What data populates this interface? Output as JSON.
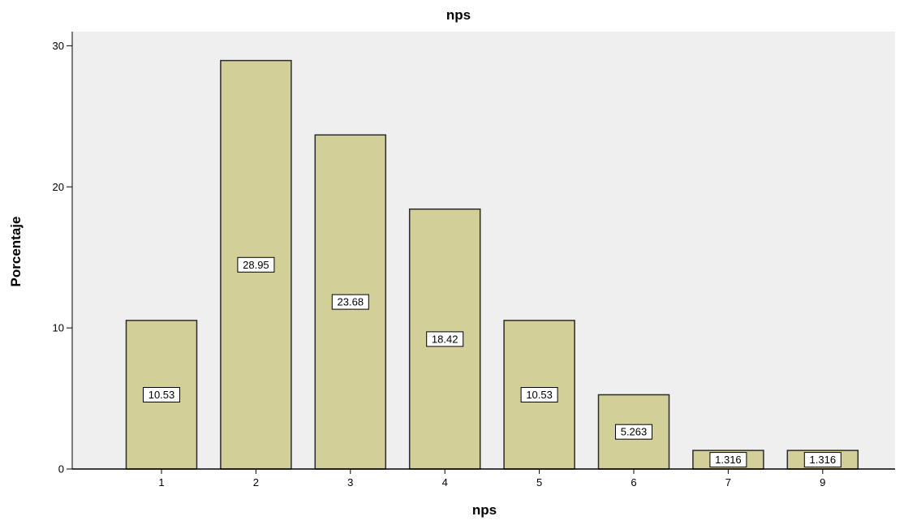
{
  "chart_data": {
    "type": "bar",
    "title": "nps",
    "xlabel": "nps",
    "ylabel": "Porcentaje",
    "categories": [
      "1",
      "2",
      "3",
      "4",
      "5",
      "6",
      "7",
      "9"
    ],
    "values": [
      10.53,
      28.95,
      23.68,
      18.42,
      10.53,
      5.263,
      1.316,
      1.316
    ],
    "data_labels": [
      "10.53",
      "28.95",
      "23.68",
      "18.42",
      "10.53",
      "5.263",
      "1.316",
      "1.316"
    ],
    "ylim": [
      0,
      31
    ],
    "yticks": [
      0,
      10,
      20,
      30
    ],
    "grid": false,
    "legend": "none",
    "colors": {
      "bar_fill": "#d3cf98",
      "bar_stroke": "#2b2b2b",
      "plot_background": "#efefef",
      "page_background": "#ffffff",
      "axis": "#000000",
      "label_box_fill": "#ffffff"
    }
  }
}
